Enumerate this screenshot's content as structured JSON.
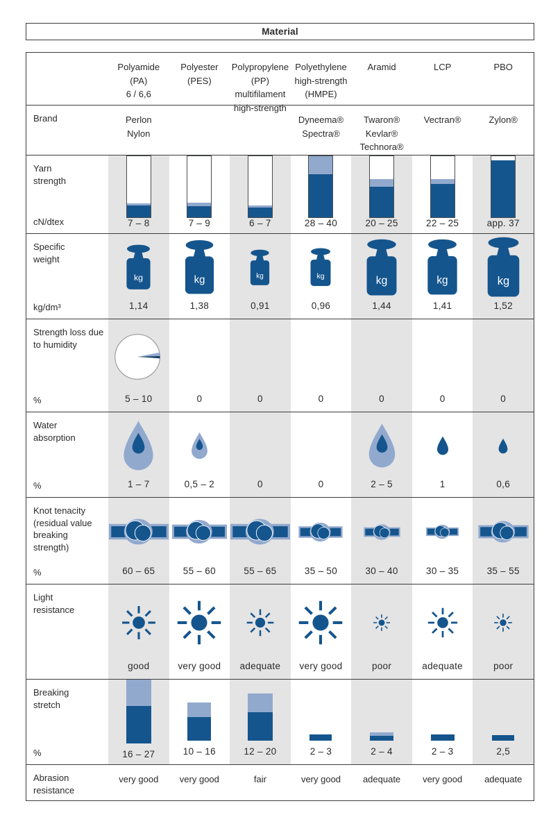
{
  "title": "Material",
  "colors": {
    "dark_blue": "#15558d",
    "light_blue": "#92a9ce",
    "column_gray": "#e4e4e4",
    "border": "#3c3c3c",
    "pie_outline": "#9a9a9a"
  },
  "columns": [
    {
      "name": "Polyamide\n(PA)\n6 / 6,6",
      "shaded": true
    },
    {
      "name": "Polyester\n(PES)",
      "shaded": false
    },
    {
      "name": "Polypropylene\n(PP)\nmultifilament\nhigh-strength",
      "shaded": true
    },
    {
      "name": "Polyethylene\nhigh-strength\n(HMPE)",
      "shaded": false
    },
    {
      "name": "Aramid",
      "shaded": true
    },
    {
      "name": "LCP",
      "shaded": false
    },
    {
      "name": "PBO",
      "shaded": true
    }
  ],
  "rows": [
    {
      "id": "brand",
      "label": "Brand",
      "unit": "",
      "type": "text",
      "values": [
        "Perlon\nNylon",
        "",
        "",
        "Dyneema®\nSpectra®",
        "Twaron®\nKevlar®\nTechnora®",
        "Vectran®",
        "Zylon®"
      ]
    },
    {
      "id": "yarn-strength",
      "label": "Yarn\nstrength",
      "unit": "cN/dtex",
      "type": "yarn-bars",
      "values": [
        "7 – 8",
        "7 – 9",
        "6 – 7",
        "28 – 40",
        "20 – 25",
        "22 – 25",
        "app. 37"
      ],
      "icons": [
        {
          "dark": 17,
          "light": 3
        },
        {
          "dark": 16,
          "light": 5
        },
        {
          "dark": 14,
          "light": 3
        },
        {
          "dark": 62,
          "light": 26
        },
        {
          "dark": 44,
          "light": 11
        },
        {
          "dark": 48,
          "light": 7
        },
        {
          "dark": 82,
          "light": 0
        }
      ]
    },
    {
      "id": "specific-weight",
      "label": "Specific\nweight",
      "unit": "kg/dm³",
      "type": "weights",
      "values": [
        "1,14",
        "1,38",
        "0,91",
        "0,96",
        "1,44",
        "1,41",
        "1,52"
      ],
      "icons": [
        {
          "h": 66
        },
        {
          "h": 80
        },
        {
          "h": 53
        },
        {
          "h": 56
        },
        {
          "h": 83
        },
        {
          "h": 82
        },
        {
          "h": 88
        }
      ],
      "weight_text": "kg"
    },
    {
      "id": "humidity-loss",
      "label": "Strength loss due\nto humidity",
      "unit": "%",
      "type": "pie",
      "values": [
        "5 – 10",
        "0",
        "0",
        "0",
        "0",
        "0",
        "0"
      ],
      "icons": [
        {
          "h": 76
        },
        null,
        null,
        null,
        null,
        null,
        null
      ]
    },
    {
      "id": "water-absorption",
      "label": "Water\nabsorption",
      "unit": "%",
      "type": "droplets",
      "values": [
        "1 – 7",
        "0,5 – 2",
        "0",
        "0",
        "2 – 5",
        "1",
        "0,6"
      ],
      "icons": [
        {
          "h": 74,
          "style": "light-inner"
        },
        {
          "h": 40,
          "style": "light-inner"
        },
        null,
        null,
        {
          "h": 66,
          "style": "light-inner"
        },
        {
          "h": 28,
          "style": "dark"
        },
        {
          "h": 23,
          "style": "dark"
        }
      ]
    },
    {
      "id": "knot-tenacity",
      "label": "Knot tenacity\n(residual value\nbreaking\nstrength)",
      "unit": "%",
      "type": "knots",
      "values": [
        "60 – 65",
        "55 – 60",
        "55 – 65",
        "35 – 50",
        "30 – 40",
        "30 – 35",
        "35 – 55"
      ],
      "icons": [
        {
          "w": 86
        },
        {
          "w": 79
        },
        {
          "w": 86
        },
        {
          "w": 64
        },
        {
          "w": 53
        },
        {
          "w": 47
        },
        {
          "w": 73
        }
      ]
    },
    {
      "id": "light-resistance",
      "label": "Light\nresistance",
      "unit": "",
      "type": "suns",
      "values": [
        "good",
        "very good",
        "adequate",
        "very good",
        "poor",
        "adequate",
        "poor"
      ],
      "icons": [
        {
          "s": 52
        },
        {
          "s": 68
        },
        {
          "s": 42
        },
        {
          "s": 68
        },
        {
          "s": 26
        },
        {
          "s": 46
        },
        {
          "s": 28
        }
      ]
    },
    {
      "id": "breaking-stretch",
      "label": "Breaking\nstretch",
      "unit": "%",
      "type": "stretch-bars",
      "values": [
        "16 – 27",
        "10 – 16",
        "12 – 20",
        "2 – 3",
        "2 – 4",
        "2 – 3",
        "2,5"
      ],
      "icons": [
        {
          "dark": 54,
          "light": 38,
          "w": 36
        },
        {
          "dark": 34,
          "light": 21,
          "w": 34
        },
        {
          "dark": 41,
          "light": 27,
          "w": 36
        },
        {
          "dark": 9,
          "light": 0,
          "w": 32
        },
        {
          "dark": 7,
          "light": 5,
          "w": 34
        },
        {
          "dark": 9,
          "light": 0,
          "w": 34
        },
        {
          "dark": 8,
          "light": 0,
          "w": 32
        }
      ]
    },
    {
      "id": "abrasion-resistance",
      "label": "Abrasion\nresistance",
      "unit": "",
      "type": "text",
      "values": [
        "very good",
        "very good",
        "fair",
        "very good",
        "adequate",
        "very good",
        "adequate"
      ]
    }
  ]
}
